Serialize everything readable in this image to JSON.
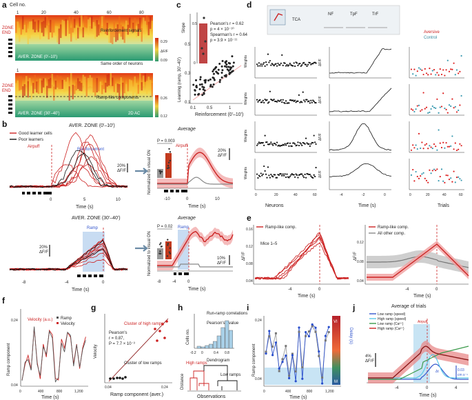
{
  "figure": {
    "panel_letters": [
      "a",
      "b",
      "c",
      "d",
      "e",
      "f",
      "g",
      "h",
      "i",
      "j"
    ],
    "a": {
      "x_title": "Cell no.",
      "x_ticks": [
        "1",
        "20",
        "40",
        "60",
        "80"
      ],
      "zone_label": "ZONE\nEND",
      "zone_top": "ZONE",
      "zone_bottom": "END",
      "label_top": "AVER. ZONE (0'–10')",
      "label_bottom": "AVER. ZONE (30'–40')",
      "annot1": "Reinforcement signals",
      "annot2": "Same order of neurons",
      "annot3": "Ramp-like components",
      "cbar1": [
        "0.29",
        "0.09"
      ],
      "cbar2": [
        "0.26",
        "0.12"
      ],
      "cbar_label": "ΔF/F",
      "tag_2d": "2D AC"
    },
    "b": {
      "top_title": "AVER. ZONE (0'–10')",
      "legend_good": "Good learner cells",
      "legend_poor": "Poor learners",
      "airpuff": "Airpuff",
      "reinforcement": "Reinforcement",
      "scale": "20%\nΔF/F",
      "scale_a": "20%",
      "scale_b": "ΔF/F",
      "x_ticks": [
        "0",
        "5",
        "10"
      ],
      "x_title": "Time (s)",
      "avg_title": "Average",
      "p1": "P = 0.003",
      "ylabel": "Normalized to visual ON",
      "avg_x_ticks": [
        "-10",
        "0",
        "10"
      ],
      "avg_scale": "20%\nΔF/F",
      "bot_title": "AVER. ZONE (30'–40')",
      "ramp": "Ramp",
      "bot_x_ticks": [
        "-8",
        "-4",
        "0"
      ],
      "p2": "P = 0.02",
      "avg2_x_ticks": [
        "-8",
        "-4",
        "0"
      ],
      "avg2_scale": "10%\nΔF/F"
    },
    "c": {
      "ylabel": "Learning (ramp, 30'–40')",
      "xlabel": "Reinforcement (0'–10')",
      "x_ticks": [
        "0.1",
        "0.5",
        "1"
      ],
      "y_ticks": [
        "0.1",
        "0.3",
        "0.5"
      ],
      "inset_ylabel": "Slope",
      "inset_ticks": [
        "0.5",
        "0"
      ],
      "stats": [
        "Pearson's r = 0.62",
        "p = 4 × 10⁻¹⁰",
        "Spearman's r = 0.64",
        "p = 3.9 × 10⁻¹¹"
      ]
    },
    "d": {
      "schema": [
        "TCA",
        "NF",
        "TpF",
        "TrF"
      ],
      "col_titles": [
        "Neurons",
        "Time (s)",
        "Trials"
      ],
      "ylabel_left": "Weights",
      "ylabel_mid": "ΔF/F",
      "legend": [
        "Aversive",
        "Control"
      ],
      "x_ticks_mid": [
        "-4",
        "-2",
        "0"
      ],
      "x_ticks_left": [
        "0",
        "20",
        "40",
        "60"
      ],
      "x_ticks_right": [
        "0",
        "20",
        "40",
        "60"
      ]
    },
    "e": {
      "legend1": "Ramp-like comp.",
      "mice": "Mice 1–5",
      "ylabel": "ΔF/F",
      "y_ticks": [
        "0.04",
        "0.08",
        "0.12",
        "0.16"
      ],
      "x_ticks": [
        "-4",
        "0"
      ],
      "x_title": "Time (s)",
      "legend2a": "Ramp-like comp.",
      "legend2b": "All other comp.",
      "y2_ticks": [
        "0.04",
        "0.08",
        "0.12"
      ],
      "x2_ticks": [
        "-4",
        "0"
      ]
    },
    "f": {
      "ylabel": "Ramp component",
      "x_title": "Time (s)",
      "x_ticks": [
        "0",
        "400",
        "800",
        "1,200"
      ],
      "y_ticks": [
        "0.04",
        "0.24"
      ],
      "legend": [
        "Ramp",
        "Velocity"
      ],
      "velocity": "Velocity (a.u.)"
    },
    "g": {
      "xlabel": "Ramp component (aver.)",
      "ylabel": "Velocity",
      "x_ticks": [
        "0.04",
        "0.24"
      ],
      "cluster_high": "Cluster of high ramps",
      "cluster_low": "Cluster of low ramps",
      "stats": [
        "Pearson's",
        "r = 0.87,",
        "P = 7.7 × 10⁻³"
      ]
    },
    "h": {
      "title1": "Run-ramp correlations",
      "pearson": "Pearson's r value",
      "ylabel1": "Cells no.",
      "x_ticks": [
        "-0.2",
        "0",
        "0.4",
        "0.8"
      ],
      "high": "High ramps",
      "low": "Low ramps",
      "dendrogram": "Dendrogram",
      "ylabel2": "Distance",
      "xlabel2": "Observations"
    },
    "i": {
      "ylabel": "Ramp component",
      "y2label": "Delay (s)",
      "x_title": "Time (s)",
      "x_ticks": [
        "0",
        "400",
        "800",
        "1,200"
      ],
      "y_ticks": [
        "0.04",
        "0.24"
      ],
      "vi": "VI",
      "m": "M"
    },
    "j": {
      "title": "Average of trials",
      "legend": [
        "Low ramp (speed)",
        "High ramp (speed)",
        "Low ramp (Ca²⁺)",
        "High ramp (Ca²⁺)"
      ],
      "scale": "4%\nΔF/F",
      "scale2": "0.03\ncm s⁻¹",
      "airpuff": "Airpuff",
      "x_ticks": [
        "-4",
        "0",
        "4"
      ],
      "x_title": "Time (s)",
      "dt": "Δt"
    }
  },
  "colors": {
    "red": "#cc2222",
    "blue": "#3355cc",
    "gray": "#888888"
  }
}
